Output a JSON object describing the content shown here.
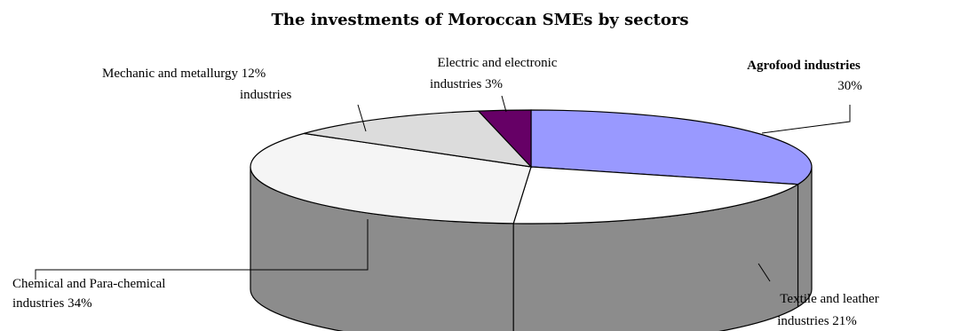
{
  "chart_data": {
    "type": "pie",
    "title": "The investments of Moroccan SMEs by sectors",
    "categories": [
      "Agrofood industries",
      "Textile and leather industries",
      "Chemical and Para-chemical industries",
      "Mechanic and metallurgy industries",
      "Electric and electronic industries"
    ],
    "values": [
      30,
      21,
      34,
      12,
      3
    ],
    "labels": [
      {
        "lines": [
          "Agrofood industries",
          "30%"
        ],
        "bold_first": true
      },
      {
        "lines": [
          "Textile and leather",
          "industries  21%"
        ]
      },
      {
        "lines": [
          "Chemical and Para-chemical",
          "industries  34%"
        ]
      },
      {
        "lines": [
          "Mechanic and metallurgy  12%",
          "industries"
        ]
      },
      {
        "lines": [
          "Electric and electronic",
          "industries   3%"
        ]
      }
    ],
    "colors": {
      "top": [
        "#9999ff",
        "#ffffff",
        "#f5f5f5",
        "#dcdcdc",
        "#660066"
      ],
      "side": "#8c8c8c",
      "stroke": "#000000"
    },
    "style": "3d-pie",
    "legend": "none"
  }
}
